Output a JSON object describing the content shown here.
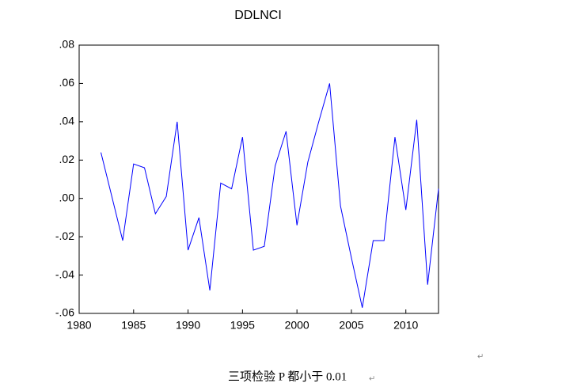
{
  "chart_data": {
    "type": "line",
    "title": "DDLNCI",
    "x": [
      1982,
      1983,
      1984,
      1985,
      1986,
      1987,
      1988,
      1989,
      1990,
      1991,
      1992,
      1993,
      1994,
      1995,
      1996,
      1997,
      1998,
      1999,
      2000,
      2001,
      2002,
      2003,
      2004,
      2005,
      2006,
      2007,
      2008,
      2009,
      2010,
      2011,
      2012,
      2013
    ],
    "series": [
      {
        "name": "DDLNCI",
        "color": "#0000ff",
        "values": [
          0.024,
          0.001,
          -0.022,
          0.018,
          0.016,
          -0.008,
          0.001,
          0.04,
          -0.027,
          -0.01,
          -0.048,
          0.008,
          0.005,
          0.032,
          -0.027,
          -0.025,
          0.017,
          0.035,
          -0.014,
          0.019,
          0.04,
          0.06,
          -0.004,
          -0.031,
          -0.057,
          -0.022,
          -0.022,
          0.032,
          -0.006,
          0.041,
          -0.045,
          0.005
        ]
      }
    ],
    "xlim": [
      1980,
      2013
    ],
    "xticks": [
      1980,
      1985,
      1990,
      1995,
      2000,
      2005,
      2010
    ],
    "ylim": [
      -0.06,
      0.08
    ],
    "yticks": [
      {
        "value": -0.06,
        "label": "-.06"
      },
      {
        "value": -0.04,
        "label": "-.04"
      },
      {
        "value": -0.02,
        "label": "-.02"
      },
      {
        "value": 0,
        "label": ".00"
      },
      {
        "value": 0.02,
        "label": ".02"
      },
      {
        "value": 0.04,
        "label": ".04"
      },
      {
        "value": 0.06,
        "label": ".06"
      },
      {
        "value": 0.08,
        "label": ".08"
      }
    ],
    "grid": false
  },
  "caption": "三项检验 P 都小于 0.01",
  "return_marks": [
    "↵",
    "↵"
  ]
}
